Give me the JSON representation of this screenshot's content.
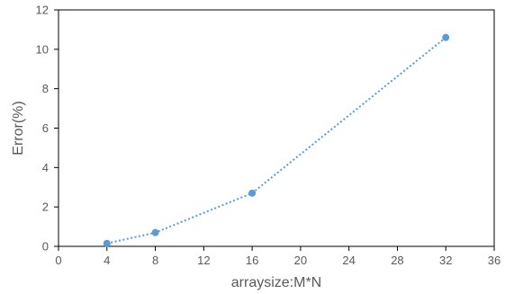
{
  "chart_data": {
    "type": "scatter",
    "xlabel": "arraysize:M*N",
    "ylabel": "Error(%)",
    "xlim": [
      0,
      36
    ],
    "ylim": [
      0,
      12
    ],
    "x_ticks": [
      "0",
      "4",
      "8",
      "12",
      "16",
      "20",
      "24",
      "28",
      "32",
      "36"
    ],
    "y_ticks": [
      "0",
      "2",
      "4",
      "6",
      "8",
      "10",
      "12"
    ],
    "grid": false,
    "legend": "none",
    "series": [
      {
        "x": [
          4,
          8,
          16,
          32
        ],
        "y": [
          0.15,
          0.7,
          2.7,
          10.6
        ],
        "color": "#5B9BD5",
        "marker": "circle",
        "line_style": "dotted"
      }
    ]
  }
}
